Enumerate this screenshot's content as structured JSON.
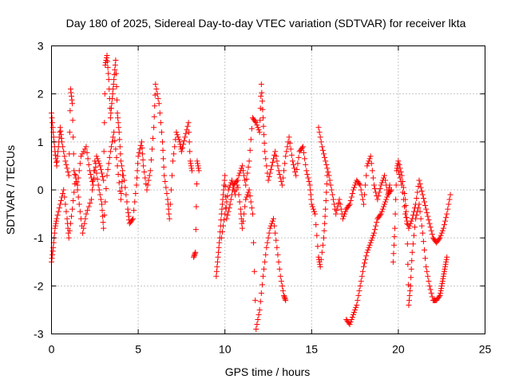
{
  "chart_data": {
    "type": "scatter",
    "title": "Day 180 of 2025, Sidereal Day-to-day VTEC variation (SDTVAR) for receiver lkta",
    "xlabel": "GPS time / hours",
    "ylabel": "SDTVAR / TECUs",
    "xlim": [
      0,
      25
    ],
    "ylim": [
      -3,
      3
    ],
    "xticks": [
      0,
      5,
      10,
      15,
      20,
      25
    ],
    "yticks": [
      -3,
      -2,
      -1,
      0,
      1,
      2,
      3
    ],
    "grid": true,
    "legend": "none",
    "marker": "plus",
    "series": [
      {
        "name": "SDTVAR",
        "color": "#ff0000",
        "segments": [
          [
            [
              0.0,
              1.6
            ],
            [
              0.1,
              1.2
            ],
            [
              0.2,
              0.8
            ],
            [
              0.3,
              0.5
            ],
            [
              0.4,
              0.9
            ],
            [
              0.5,
              1.3
            ],
            [
              0.6,
              1.0
            ],
            [
              0.8,
              0.6
            ],
            [
              1.0,
              0.3
            ],
            [
              1.1,
              2.1
            ],
            [
              1.2,
              1.8
            ],
            [
              1.3,
              0.4
            ],
            [
              1.5,
              0.1
            ],
            [
              1.7,
              0.7
            ],
            [
              2.0,
              0.9
            ],
            [
              2.2,
              0.4
            ],
            [
              2.4,
              0.1
            ],
            [
              2.6,
              0.7
            ],
            [
              2.8,
              0.5
            ],
            [
              3.0,
              0.2
            ],
            [
              3.1,
              2.6
            ],
            [
              3.2,
              2.8
            ],
            [
              3.3,
              2.3
            ],
            [
              3.4,
              1.5
            ],
            [
              3.5,
              1.9
            ],
            [
              3.6,
              2.3
            ],
            [
              3.7,
              2.7
            ],
            [
              3.8,
              1.6
            ],
            [
              3.9,
              1.2
            ],
            [
              4.0,
              0.6
            ],
            [
              4.2,
              0.2
            ],
            [
              4.4,
              -0.4
            ],
            [
              4.5,
              -0.7
            ],
            [
              4.7,
              -0.6
            ],
            [
              4.9,
              0.1
            ],
            [
              5.0,
              0.7
            ],
            [
              5.2,
              1.0
            ],
            [
              5.3,
              0.5
            ],
            [
              5.5,
              0.0
            ],
            [
              5.7,
              0.4
            ],
            [
              5.9,
              1.3
            ],
            [
              6.0,
              2.2
            ],
            [
              6.2,
              1.8
            ],
            [
              6.4,
              1.0
            ],
            [
              6.5,
              0.3
            ],
            [
              6.7,
              -0.2
            ],
            [
              6.8,
              -0.6
            ],
            [
              7.0,
              0.6
            ],
            [
              7.2,
              1.2
            ],
            [
              7.4,
              1.0
            ],
            [
              7.5,
              0.8
            ],
            [
              7.7,
              1.1
            ],
            [
              7.9,
              1.4
            ],
            [
              8.0,
              0.6
            ],
            [
              8.1,
              0.4
            ]
          ],
          [
            [
              0.0,
              -1.5
            ],
            [
              0.1,
              -1.2
            ],
            [
              0.2,
              -0.8
            ],
            [
              0.3,
              -0.6
            ],
            [
              0.5,
              -0.3
            ],
            [
              0.7,
              0.0
            ],
            [
              0.9,
              -0.6
            ],
            [
              1.0,
              -1.0
            ],
            [
              1.2,
              -0.4
            ],
            [
              1.4,
              0.3
            ],
            [
              1.6,
              -0.3
            ],
            [
              1.8,
              -0.9
            ],
            [
              2.0,
              -0.5
            ],
            [
              2.3,
              -0.2
            ],
            [
              2.5,
              0.6
            ],
            [
              2.7,
              0.1
            ],
            [
              2.9,
              -0.3
            ],
            [
              3.0,
              -0.8
            ],
            [
              3.2,
              0.3
            ],
            [
              3.4,
              0.8
            ],
            [
              3.6,
              1.2
            ],
            [
              3.8,
              0.5
            ],
            [
              4.0,
              -0.2
            ],
            [
              4.1,
              0.3
            ]
          ],
          [
            [
              8.2,
              -1.4
            ],
            [
              8.3,
              -1.3
            ],
            [
              8.4,
              0.6
            ],
            [
              8.5,
              0.4
            ]
          ],
          [
            [
              9.5,
              -1.8
            ],
            [
              9.6,
              -1.4
            ],
            [
              9.7,
              -1.0
            ],
            [
              9.8,
              -0.5
            ],
            [
              9.9,
              -0.1
            ],
            [
              10.0,
              0.3
            ],
            [
              10.1,
              -0.6
            ],
            [
              10.3,
              -0.3
            ],
            [
              10.5,
              0.1
            ],
            [
              10.7,
              0.2
            ],
            [
              10.9,
              -0.4
            ],
            [
              11.0,
              -0.8
            ],
            [
              11.2,
              -0.2
            ],
            [
              11.4,
              0.0
            ],
            [
              11.6,
              -0.5
            ],
            [
              11.8,
              -2.9
            ],
            [
              12.0,
              -2.5
            ],
            [
              12.2,
              -1.8
            ],
            [
              12.4,
              -1.2
            ],
            [
              12.6,
              -0.8
            ],
            [
              12.8,
              -0.6
            ],
            [
              13.0,
              -1.2
            ],
            [
              13.2,
              -1.8
            ],
            [
              13.4,
              -2.2
            ],
            [
              13.5,
              -2.3
            ]
          ],
          [
            [
              9.8,
              -1.0
            ],
            [
              10.0,
              -0.5
            ],
            [
              10.2,
              0.0
            ],
            [
              10.4,
              0.2
            ],
            [
              10.6,
              -0.1
            ],
            [
              10.8,
              0.3
            ],
            [
              11.0,
              0.5
            ],
            [
              11.2,
              0.1
            ],
            [
              11.4,
              0.6
            ],
            [
              11.6,
              1.5
            ],
            [
              11.8,
              1.4
            ],
            [
              12.0,
              1.2
            ],
            [
              12.1,
              2.2
            ],
            [
              12.2,
              1.5
            ],
            [
              12.3,
              0.8
            ],
            [
              12.5,
              0.2
            ],
            [
              12.7,
              0.5
            ],
            [
              12.9,
              0.8
            ],
            [
              13.1,
              0.4
            ],
            [
              13.3,
              0.1
            ],
            [
              13.5,
              0.7
            ],
            [
              13.7,
              1.1
            ],
            [
              13.9,
              0.6
            ],
            [
              14.1,
              0.3
            ],
            [
              14.3,
              0.8
            ],
            [
              14.5,
              0.9
            ],
            [
              14.7,
              0.4
            ],
            [
              14.9,
              0.1
            ],
            [
              15.0,
              -0.3
            ],
            [
              15.2,
              -0.5
            ],
            [
              15.4,
              -1.4
            ],
            [
              15.5,
              -1.6
            ],
            [
              15.7,
              -1.0
            ],
            [
              15.8,
              -0.4
            ],
            [
              15.9,
              0.3
            ]
          ],
          [
            [
              15.4,
              1.3
            ],
            [
              15.6,
              0.9
            ],
            [
              15.8,
              0.6
            ],
            [
              16.0,
              0.3
            ],
            [
              16.2,
              -0.1
            ],
            [
              16.4,
              -0.5
            ],
            [
              16.6,
              -0.2
            ],
            [
              16.8,
              -0.6
            ],
            [
              17.0,
              -0.4
            ],
            [
              17.2,
              -0.3
            ],
            [
              17.4,
              0.0
            ],
            [
              17.6,
              0.2
            ],
            [
              17.8,
              0.1
            ],
            [
              18.0,
              -0.3
            ],
            [
              18.2,
              0.5
            ],
            [
              18.4,
              0.7
            ],
            [
              18.6,
              0.1
            ],
            [
              18.8,
              -0.2
            ],
            [
              19.0,
              0.1
            ],
            [
              19.2,
              0.3
            ],
            [
              19.4,
              -0.1
            ],
            [
              19.6,
              0.0
            ]
          ],
          [
            [
              17.0,
              -2.7
            ],
            [
              17.2,
              -2.8
            ],
            [
              17.4,
              -2.6
            ],
            [
              17.6,
              -2.4
            ],
            [
              17.8,
              -2.0
            ],
            [
              18.0,
              -1.6
            ],
            [
              18.2,
              -1.3
            ],
            [
              18.4,
              -1.1
            ],
            [
              18.6,
              -0.9
            ],
            [
              18.8,
              -0.6
            ],
            [
              19.0,
              -0.5
            ],
            [
              19.2,
              -0.3
            ],
            [
              19.4,
              -0.1
            ],
            [
              19.5,
              0.1
            ]
          ],
          [
            [
              19.7,
              -1.5
            ],
            [
              19.8,
              -0.8
            ],
            [
              19.9,
              0.4
            ],
            [
              20.0,
              0.6
            ],
            [
              20.2,
              0.3
            ],
            [
              20.4,
              -0.2
            ],
            [
              20.5,
              -0.7
            ],
            [
              20.6,
              -2.4
            ],
            [
              20.7,
              -2.0
            ],
            [
              20.8,
              -1.3
            ],
            [
              21.0,
              -0.6
            ],
            [
              21.2,
              -0.3
            ],
            [
              21.4,
              -0.9
            ],
            [
              21.6,
              -1.6
            ],
            [
              21.8,
              -2.0
            ],
            [
              22.0,
              -2.3
            ],
            [
              22.2,
              -2.3
            ],
            [
              22.4,
              -2.2
            ],
            [
              22.5,
              -2.0
            ],
            [
              22.6,
              -1.8
            ],
            [
              22.7,
              -1.6
            ],
            [
              22.8,
              -1.4
            ]
          ],
          [
            [
              20.0,
              0.4
            ],
            [
              20.2,
              0.1
            ],
            [
              20.4,
              -0.5
            ],
            [
              20.6,
              -0.8
            ],
            [
              20.8,
              -0.6
            ],
            [
              21.0,
              -0.3
            ],
            [
              21.2,
              0.2
            ],
            [
              21.4,
              -0.1
            ],
            [
              21.6,
              -0.4
            ],
            [
              21.8,
              -0.7
            ],
            [
              22.0,
              -1.0
            ],
            [
              22.2,
              -1.1
            ],
            [
              22.4,
              -1.0
            ],
            [
              22.6,
              -0.8
            ],
            [
              22.8,
              -0.5
            ],
            [
              23.0,
              -0.1
            ]
          ]
        ]
      }
    ]
  }
}
